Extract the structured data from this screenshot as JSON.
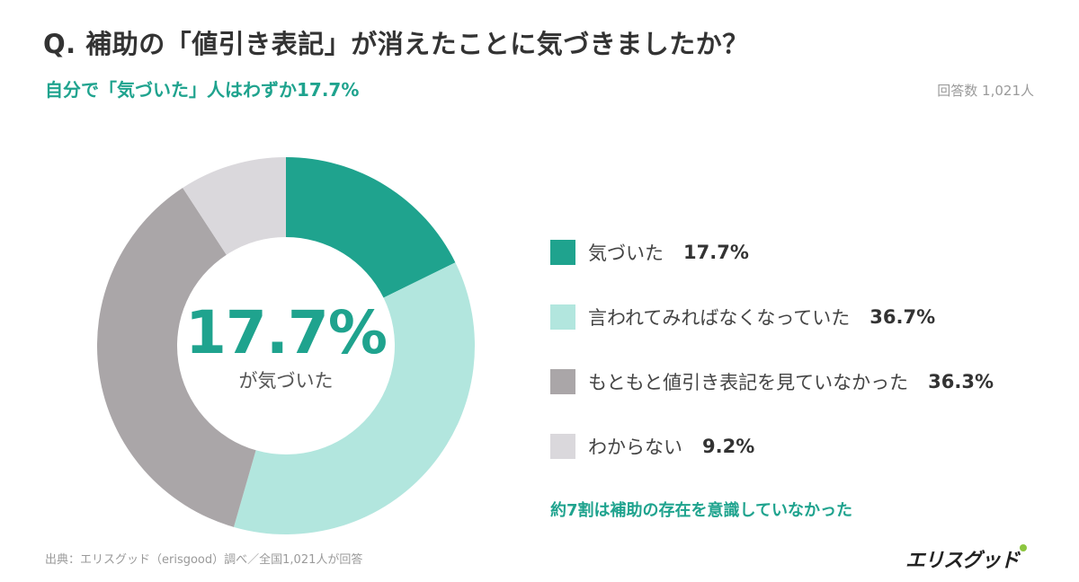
{
  "header": {
    "title": "Q. 補助の「値引き表記」が消えたことに気づきましたか？",
    "subtitle": "自分で「気づいた」人はわずか17.7%",
    "respondents": "回答数 1,021人"
  },
  "center": {
    "value": "17.7%",
    "label": "が気づいた"
  },
  "note": "約7割は補助の存在を意識していなかった",
  "footer": {
    "source": "出典：エリスグッド（erisgood）調べ／全国1,021人が回答",
    "logo_text": "エリスグッド"
  },
  "chart_data": {
    "type": "pie",
    "donut": true,
    "categories": [
      "気づいた",
      "言われてみればなくなっていた",
      "もともと値引き表記を見ていなかった",
      "わからない"
    ],
    "values": [
      17.7,
      36.7,
      36.3,
      9.2
    ],
    "value_labels": [
      "17.7%",
      "36.7%",
      "36.3%",
      "9.2%"
    ],
    "colors": [
      "#1fa38e",
      "#b2e6de",
      "#aaa6a8",
      "#dad8dc"
    ],
    "legend_position": "right"
  }
}
